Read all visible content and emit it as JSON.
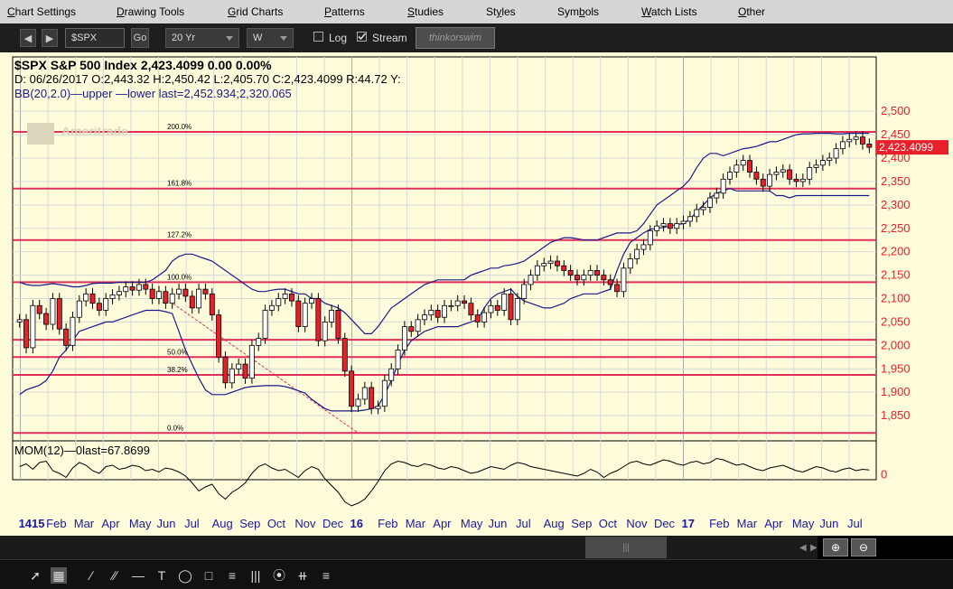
{
  "menu": {
    "items": [
      {
        "label": "Chart Settings",
        "accel": "C"
      },
      {
        "label": "Drawing Tools",
        "accel": "D"
      },
      {
        "label": "Grid Charts",
        "accel": "G"
      },
      {
        "label": "Patterns",
        "accel": "P"
      },
      {
        "label": "Studies",
        "accel": "S"
      },
      {
        "label": "Styles",
        "accel": "y"
      },
      {
        "label": "Symbols",
        "accel": "b"
      },
      {
        "label": "Watch Lists",
        "accel": "W"
      },
      {
        "label": "Other",
        "accel": "O"
      }
    ]
  },
  "toolbar": {
    "symbol_value": "$SPX",
    "go_label": "Go",
    "period_value": "20 Yr",
    "interval_value": "W",
    "log_label": "Log",
    "log_checked": false,
    "stream_label": "Stream",
    "stream_checked": true,
    "logo_label": "thinkorswim"
  },
  "header": {
    "symbol_line": "$SPX S&P 500 Index  2,423.4099  0.00  0.00%",
    "ohlc_line": "D: 06/26/2017 O:2,443.32 H:2,450.42 L:2,405.70 C:2,423.4099 R:44.72  Y:",
    "bb_line": "BB(20,2.0)—upper —lower last=2,452.934;2,320.065",
    "watermark": "Ameritrade"
  },
  "mom": {
    "label": "MOM(12)—0last=67.8699",
    "zero_label": "0"
  },
  "last_price_label": "2,423.4099",
  "colors": {
    "background": "#fffcdc",
    "fib_line": "#e0305a",
    "bb_line": "#1a1a8c",
    "up_candle": "#ffffff",
    "down_candle": "#e8202a",
    "axis_text": "#e8202a",
    "x_axis_text": "#1a1aa0"
  },
  "chart_data": {
    "type": "candlestick",
    "title": "$SPX S&P 500 Index",
    "ylim": [
      1800,
      2510
    ],
    "y_ticks": [
      "2,500",
      "2,450",
      "2,400",
      "2,350",
      "2,300",
      "2,250",
      "2,200",
      "2,150",
      "2,100",
      "2,050",
      "2,000",
      "1,950",
      "1,900",
      "1,850"
    ],
    "x_ticks": [
      {
        "label": "1415",
        "bold": true
      },
      {
        "label": "Feb"
      },
      {
        "label": "Mar"
      },
      {
        "label": "Apr"
      },
      {
        "label": "May"
      },
      {
        "label": "Jun"
      },
      {
        "label": "Jul"
      },
      {
        "label": "Aug"
      },
      {
        "label": "Sep"
      },
      {
        "label": "Oct"
      },
      {
        "label": "Nov"
      },
      {
        "label": "Dec"
      },
      {
        "label": "16",
        "bold": true
      },
      {
        "label": "Feb"
      },
      {
        "label": "Mar"
      },
      {
        "label": "Apr"
      },
      {
        "label": "May"
      },
      {
        "label": "Jun"
      },
      {
        "label": "Jul"
      },
      {
        "label": "Aug"
      },
      {
        "label": "Sep"
      },
      {
        "label": "Oct"
      },
      {
        "label": "Nov"
      },
      {
        "label": "Dec"
      },
      {
        "label": "17",
        "bold": true
      },
      {
        "label": "Feb"
      },
      {
        "label": "Mar"
      },
      {
        "label": "Apr"
      },
      {
        "label": "May"
      },
      {
        "label": "Jun"
      },
      {
        "label": "Jul"
      }
    ],
    "fib_levels": [
      {
        "label": "200.0%",
        "value": 2456
      },
      {
        "label": "161.8%",
        "value": 2335
      },
      {
        "label": "127.2%",
        "value": 2225
      },
      {
        "label": "100.0%",
        "value": 2135
      },
      {
        "label": "",
        "value": 2012
      },
      {
        "label": "50.0%",
        "value": 1975
      },
      {
        "label": "38.2%",
        "value": 1937
      },
      {
        "label": "0.0%",
        "value": 1813
      }
    ],
    "closes": [
      2055,
      1995,
      2085,
      2068,
      2045,
      2100,
      2035,
      2000,
      2060,
      2095,
      2110,
      2090,
      2075,
      2100,
      2108,
      2115,
      2125,
      2118,
      2130,
      2120,
      2100,
      2115,
      2090,
      2110,
      2120,
      2105,
      2080,
      2120,
      2110,
      2065,
      1975,
      1920,
      1950,
      1960,
      1930,
      2000,
      2015,
      2075,
      2085,
      2100,
      2110,
      2095,
      2040,
      2090,
      2100,
      2010,
      2050,
      2075,
      2015,
      1945,
      1870,
      1885,
      1910,
      1865,
      1870,
      1925,
      1950,
      1990,
      2040,
      2030,
      2055,
      2065,
      2075,
      2060,
      2085,
      2085,
      2095,
      2090,
      2065,
      2050,
      2070,
      2085,
      2075,
      2110,
      2055,
      2100,
      2130,
      2150,
      2170,
      2175,
      2180,
      2170,
      2160,
      2150,
      2140,
      2150,
      2160,
      2150,
      2140,
      2130,
      2115,
      2165,
      2185,
      2205,
      2215,
      2245,
      2255,
      2260,
      2250,
      2260,
      2265,
      2275,
      2290,
      2295,
      2315,
      2325,
      2355,
      2370,
      2385,
      2395,
      2370,
      2355,
      2340,
      2365,
      2370,
      2375,
      2355,
      2350,
      2355,
      2380,
      2385,
      2395,
      2400,
      2420,
      2435,
      2440,
      2445,
      2430,
      2423
    ],
    "bb_upper": [
      2135,
      2130,
      2128,
      2128,
      2130,
      2132,
      2130,
      2128,
      2125,
      2125,
      2128,
      2132,
      2133,
      2133,
      2133,
      2135,
      2135,
      2135,
      2135,
      2135,
      2140,
      2150,
      2160,
      2180,
      2190,
      2195,
      2195,
      2190,
      2185,
      2180,
      2170,
      2160,
      2150,
      2140,
      2130,
      2120,
      2115,
      2115,
      2118,
      2120,
      2120,
      2115,
      2110,
      2110,
      2100,
      2100,
      2090,
      2085,
      2080,
      2070,
      2055,
      2040,
      2025,
      2025,
      2040,
      2060,
      2080,
      2090,
      2100,
      2110,
      2120,
      2130,
      2135,
      2140,
      2140,
      2140,
      2140,
      2140,
      2150,
      2155,
      2160,
      2165,
      2165,
      2170,
      2172,
      2175,
      2180,
      2190,
      2200,
      2210,
      2220,
      2225,
      2230,
      2230,
      2228,
      2225,
      2225,
      2225,
      2230,
      2235,
      2240,
      2240,
      2240,
      2245,
      2260,
      2280,
      2300,
      2310,
      2320,
      2330,
      2340,
      2355,
      2380,
      2400,
      2410,
      2410,
      2405,
      2410,
      2415,
      2420,
      2422,
      2425,
      2430,
      2435,
      2435,
      2440,
      2445,
      2450,
      2452,
      2452,
      2453,
      2453,
      2453,
      2452,
      2452,
      2453,
      2453,
      2453,
      2453
    ],
    "bb_lower": [
      1895,
      1905,
      1910,
      1915,
      1925,
      1945,
      1975,
      1990,
      2010,
      2030,
      2035,
      2040,
      2045,
      2050,
      2050,
      2055,
      2060,
      2065,
      2070,
      2075,
      2075,
      2075,
      2072,
      2068,
      2030,
      1990,
      1960,
      1930,
      1905,
      1895,
      1895,
      1895,
      1900,
      1905,
      1910,
      1912,
      1913,
      1914,
      1914,
      1914,
      1912,
      1908,
      1903,
      1898,
      1885,
      1875,
      1865,
      1860,
      1860,
      1860,
      1860,
      1860,
      1862,
      1865,
      1870,
      1895,
      1925,
      1960,
      1990,
      2010,
      2020,
      2030,
      2035,
      2040,
      2040,
      2040,
      2040,
      2045,
      2050,
      2055,
      2080,
      2100,
      2110,
      2115,
      2120,
      2105,
      2095,
      2090,
      2085,
      2080,
      2080,
      2085,
      2090,
      2100,
      2105,
      2110,
      2110,
      2110,
      2115,
      2120,
      2160,
      2195,
      2220,
      2230,
      2240,
      2248,
      2250,
      2252,
      2255,
      2258,
      2260,
      2270,
      2285,
      2300,
      2315,
      2325,
      2330,
      2335,
      2330,
      2330,
      2330,
      2330,
      2330,
      2330,
      2320,
      2320,
      2315,
      2320,
      2320,
      2320,
      2320,
      2320,
      2320,
      2320,
      2320,
      2320,
      2320,
      2320,
      2320
    ],
    "mom": [
      0.6,
      0.8,
      0.4,
      0.9,
      1.0,
      0.3,
      0.1,
      -0.2,
      0.5,
      0.9,
      0.7,
      0.3,
      0.1,
      0.6,
      0.7,
      0.4,
      0.5,
      0.7,
      0.6,
      0.3,
      0.4,
      0.2,
      0.5,
      0.4,
      0.2,
      -0.1,
      -0.6,
      -1.2,
      -0.9,
      -0.7,
      -1.4,
      -1.8,
      -1.3,
      -1.0,
      -0.6,
      0.1,
      0.6,
      0.8,
      0.5,
      0.3,
      0.4,
      0.1,
      -0.2,
      0.3,
      0.6,
      0.4,
      -0.3,
      -0.8,
      -1.3,
      -2.0,
      -2.3,
      -2.1,
      -1.8,
      -1.2,
      -0.5,
      0.3,
      0.8,
      1.0,
      0.9,
      0.7,
      0.6,
      0.8,
      0.7,
      0.5,
      0.4,
      0.6,
      0.5,
      0.3,
      0.1,
      0.2,
      0.4,
      0.6,
      0.5,
      0.4,
      0.7,
      0.9,
      0.8,
      0.6,
      0.5,
      0.4,
      0.3,
      0.2,
      0.1,
      0.0,
      -0.1,
      0.1,
      0.4,
      0.2,
      -0.2,
      0.1,
      0.3,
      0.6,
      0.9,
      1.0,
      0.8,
      0.7,
      0.9,
      1.1,
      1.0,
      0.8,
      0.7,
      0.9,
      1.0,
      0.8,
      0.9,
      1.2,
      1.1,
      0.9,
      0.7,
      0.8,
      0.6,
      0.4,
      0.3,
      0.5,
      0.6,
      0.7,
      0.5,
      0.3,
      0.2,
      0.4,
      0.6,
      0.5,
      0.3,
      0.2,
      0.4,
      0.5,
      0.3,
      0.4,
      0.35
    ]
  }
}
